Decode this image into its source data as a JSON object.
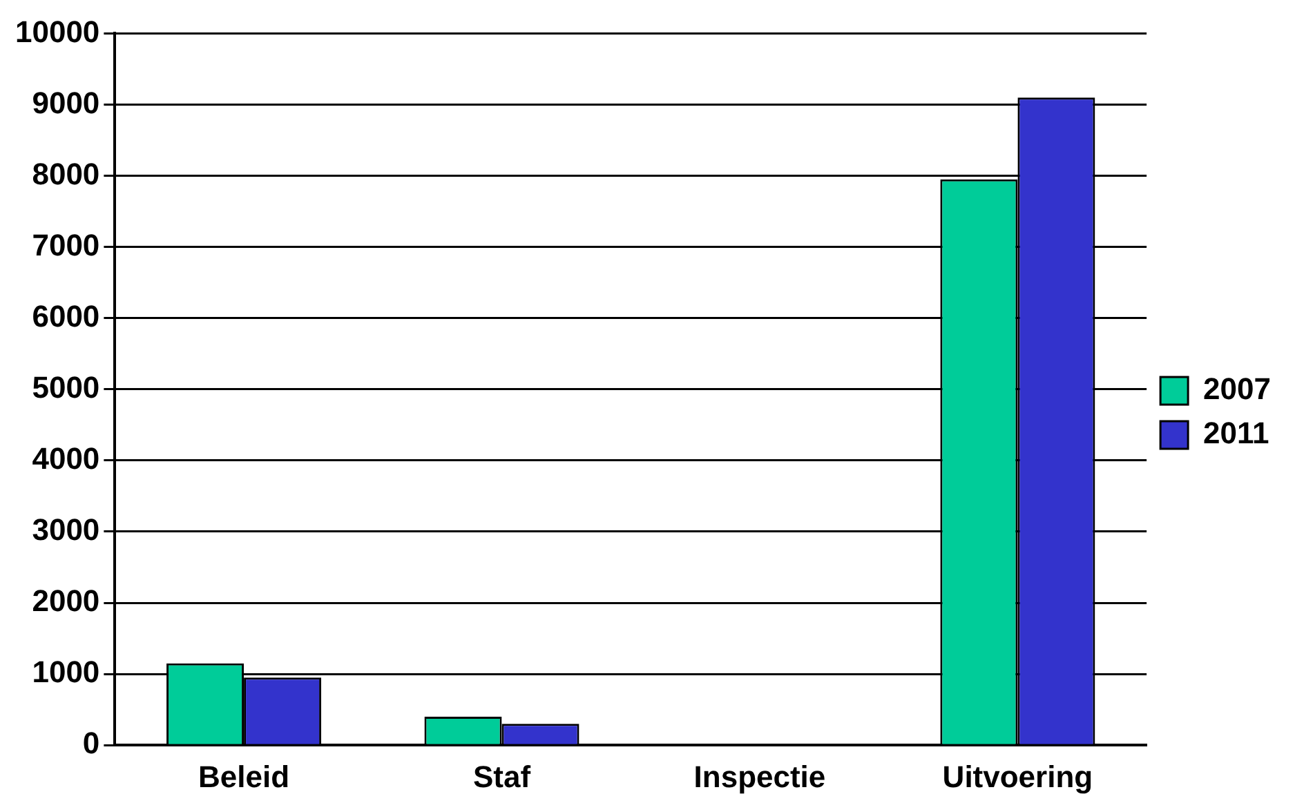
{
  "chart_data": {
    "type": "bar",
    "categories": [
      "Beleid",
      "Staf",
      "Inspectie",
      "Uitvoering"
    ],
    "series": [
      {
        "name": "2007",
        "color": "#00cc99",
        "values": [
          1150,
          400,
          0,
          7950
        ]
      },
      {
        "name": "2011",
        "color": "#3333cc",
        "values": [
          950,
          300,
          0,
          9100
        ]
      }
    ],
    "ylim": [
      0,
      10000
    ],
    "yticks": [
      0,
      1000,
      2000,
      3000,
      4000,
      5000,
      6000,
      7000,
      8000,
      9000,
      10000
    ],
    "grid": "y",
    "legend": "right"
  }
}
